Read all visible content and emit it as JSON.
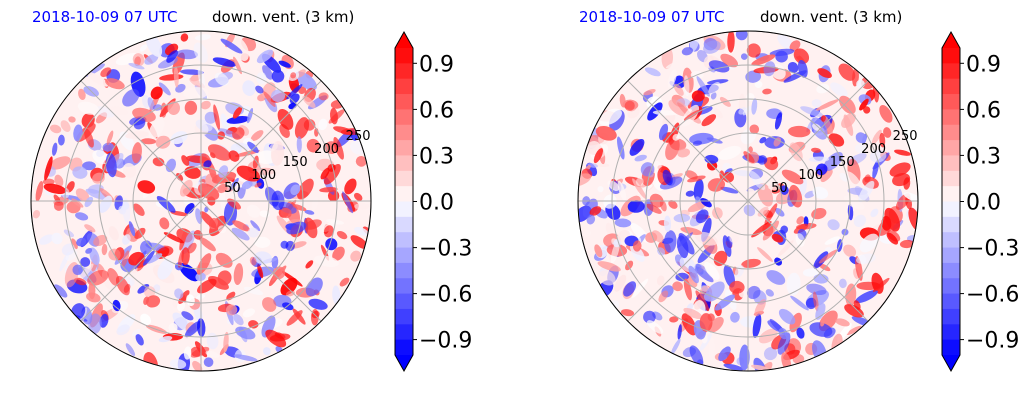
{
  "chart_data": [
    {
      "type": "heatmap",
      "projection": "polar",
      "title_date": "2018-10-09 07 UTC",
      "title_field": "down. vent. (3 km)",
      "range_ticks": [
        "50",
        "100",
        "150",
        "200",
        "250"
      ],
      "colorbar": {
        "ticks": [
          "0.9",
          "0.6",
          "0.3",
          "0.0",
          "−0.3",
          "−0.6",
          "−0.9"
        ],
        "vmin": -1.0,
        "vmax": 1.0,
        "extend": "both",
        "cmap": [
          "#0000ff",
          "#ffffff",
          "#ff0000"
        ]
      },
      "grid": true
    },
    {
      "type": "heatmap",
      "projection": "polar",
      "title_date": "2018-10-09 07 UTC",
      "title_field": "down. vent. (3 km)",
      "range_ticks": [
        "50",
        "100",
        "150",
        "200",
        "250"
      ],
      "colorbar": {
        "ticks": [
          "0.9",
          "0.6",
          "0.3",
          "0.0",
          "−0.3",
          "−0.6",
          "−0.9"
        ],
        "vmin": -1.0,
        "vmax": 1.0,
        "extend": "both",
        "cmap": [
          "#0000ff",
          "#ffffff",
          "#ff0000"
        ]
      },
      "grid": true
    }
  ]
}
